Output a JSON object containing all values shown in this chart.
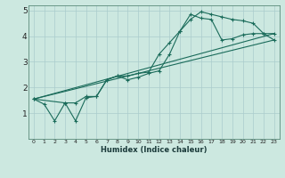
{
  "xlabel": "Humidex (Indice chaleur)",
  "background_color": "#cce8e0",
  "grid_color": "#aacccc",
  "line_color": "#1a6b5a",
  "xlim": [
    -0.5,
    23.5
  ],
  "ylim": [
    0,
    5.2
  ],
  "xticks": [
    0,
    1,
    2,
    3,
    4,
    5,
    6,
    7,
    8,
    9,
    10,
    11,
    12,
    13,
    14,
    15,
    16,
    17,
    18,
    19,
    20,
    21,
    22,
    23
  ],
  "yticks": [
    1,
    2,
    3,
    4,
    5
  ],
  "series1_x": [
    0,
    1,
    2,
    3,
    4,
    5,
    6,
    7,
    8,
    9,
    10,
    11,
    12,
    13,
    14,
    15,
    16,
    17,
    18,
    19,
    20,
    21,
    22,
    23
  ],
  "series1_y": [
    1.55,
    1.35,
    0.7,
    1.4,
    0.7,
    1.6,
    1.65,
    2.3,
    2.45,
    2.45,
    2.55,
    2.6,
    3.3,
    3.75,
    4.2,
    4.65,
    4.95,
    4.85,
    4.75,
    4.65,
    4.6,
    4.5,
    4.1,
    4.1
  ],
  "series2_x": [
    0,
    3,
    4,
    5,
    6,
    7,
    8,
    9,
    10,
    11,
    12,
    13,
    14,
    15,
    16,
    17,
    18,
    19,
    20,
    21,
    22,
    23
  ],
  "series2_y": [
    1.55,
    1.4,
    1.4,
    1.65,
    1.65,
    2.3,
    2.45,
    2.3,
    2.4,
    2.55,
    2.65,
    3.3,
    4.2,
    4.85,
    4.7,
    4.65,
    3.85,
    3.9,
    4.05,
    4.1,
    4.1,
    3.85
  ],
  "series3_x": [
    0,
    23
  ],
  "series3_y": [
    1.55,
    3.85
  ],
  "series4_x": [
    0,
    23
  ],
  "series4_y": [
    1.55,
    4.1
  ]
}
